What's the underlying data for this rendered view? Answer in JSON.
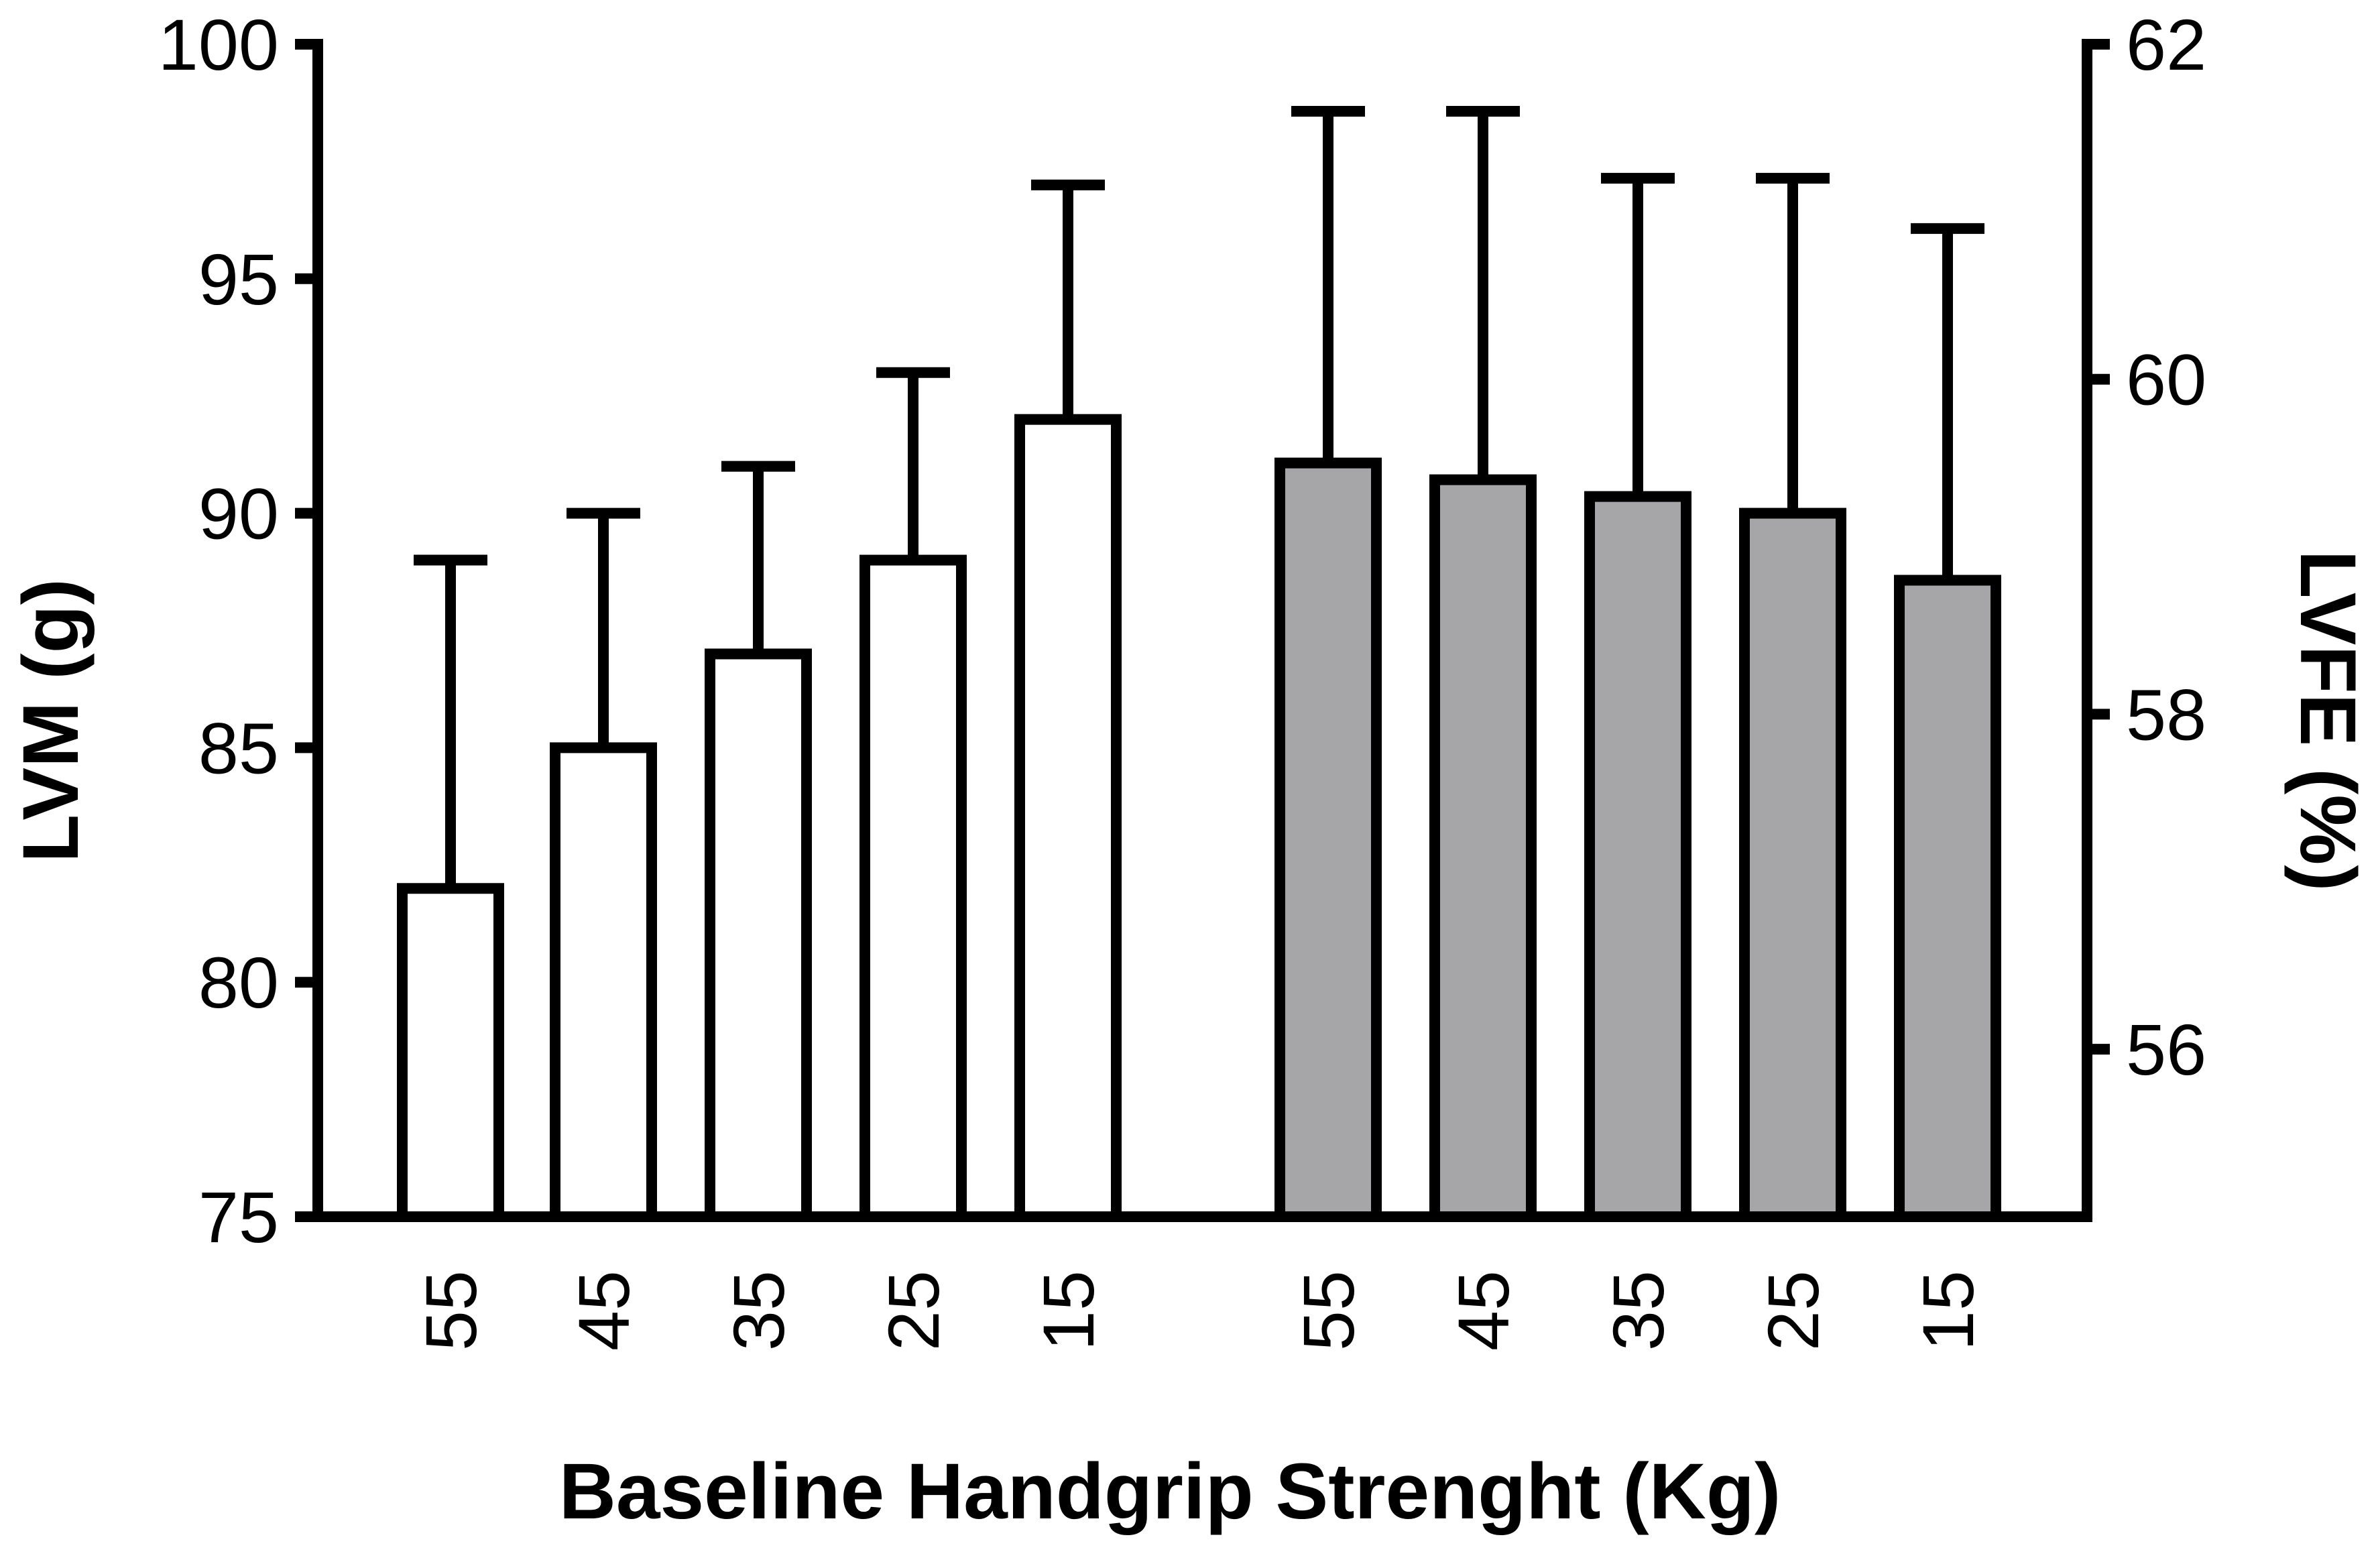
{
  "chart_data": {
    "type": "bar",
    "title": "",
    "xlabel": "Baseline Handgrip Strenght (Kg)",
    "ylabel_left": "LVM (g)",
    "ylabel_right": "LVFE (%)",
    "ylim_left": [
      75,
      100
    ],
    "ylim_right": [
      55,
      62
    ],
    "yticks_left": [
      75,
      80,
      85,
      90,
      95,
      100
    ],
    "yticks_right": [
      56,
      58,
      60,
      62
    ],
    "grid": false,
    "legend": "none",
    "series": [
      {
        "axis": "left",
        "fill": "#ffffff",
        "categories": [
          "55",
          "45",
          "35",
          "25",
          "15"
        ],
        "values": [
          82,
          85,
          87,
          89,
          92
        ],
        "error_upper": [
          89,
          90,
          91,
          93,
          97
        ]
      },
      {
        "axis": "right",
        "fill": "#a6a6a8",
        "categories": [
          "55",
          "45",
          "35",
          "25",
          "15"
        ],
        "values": [
          59.5,
          59.4,
          59.3,
          59.2,
          58.8
        ],
        "error_upper": [
          61.6,
          61.6,
          61.2,
          61.2,
          60.9
        ]
      }
    ]
  }
}
